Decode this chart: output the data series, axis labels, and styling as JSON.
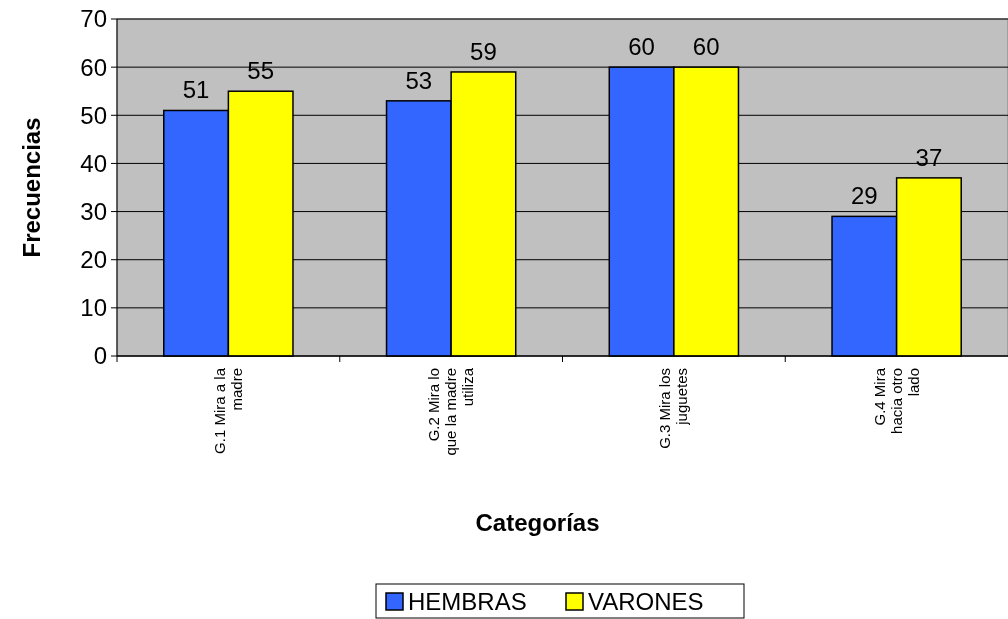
{
  "chart_data": {
    "type": "bar",
    "xlabel": "Categorías",
    "ylabel": "Frecuencias",
    "categories": [
      "G.1 Mira a la madre",
      "G.2 Mira lo que la madre utiliza",
      "G.3 Mira los juguetes",
      "G.4 Mira hacia otro lado"
    ],
    "series": [
      {
        "name": "HEMBRAS",
        "color": "#3366ff",
        "values": [
          51,
          53,
          60,
          29
        ]
      },
      {
        "name": "VARONES",
        "color": "#ffff00",
        "values": [
          55,
          59,
          60,
          37
        ]
      }
    ],
    "ylim": [
      0,
      70
    ],
    "yticks": [
      0,
      10,
      20,
      30,
      40,
      50,
      60,
      70
    ],
    "grid": "y",
    "legend": "bottom",
    "data_labels": true
  }
}
